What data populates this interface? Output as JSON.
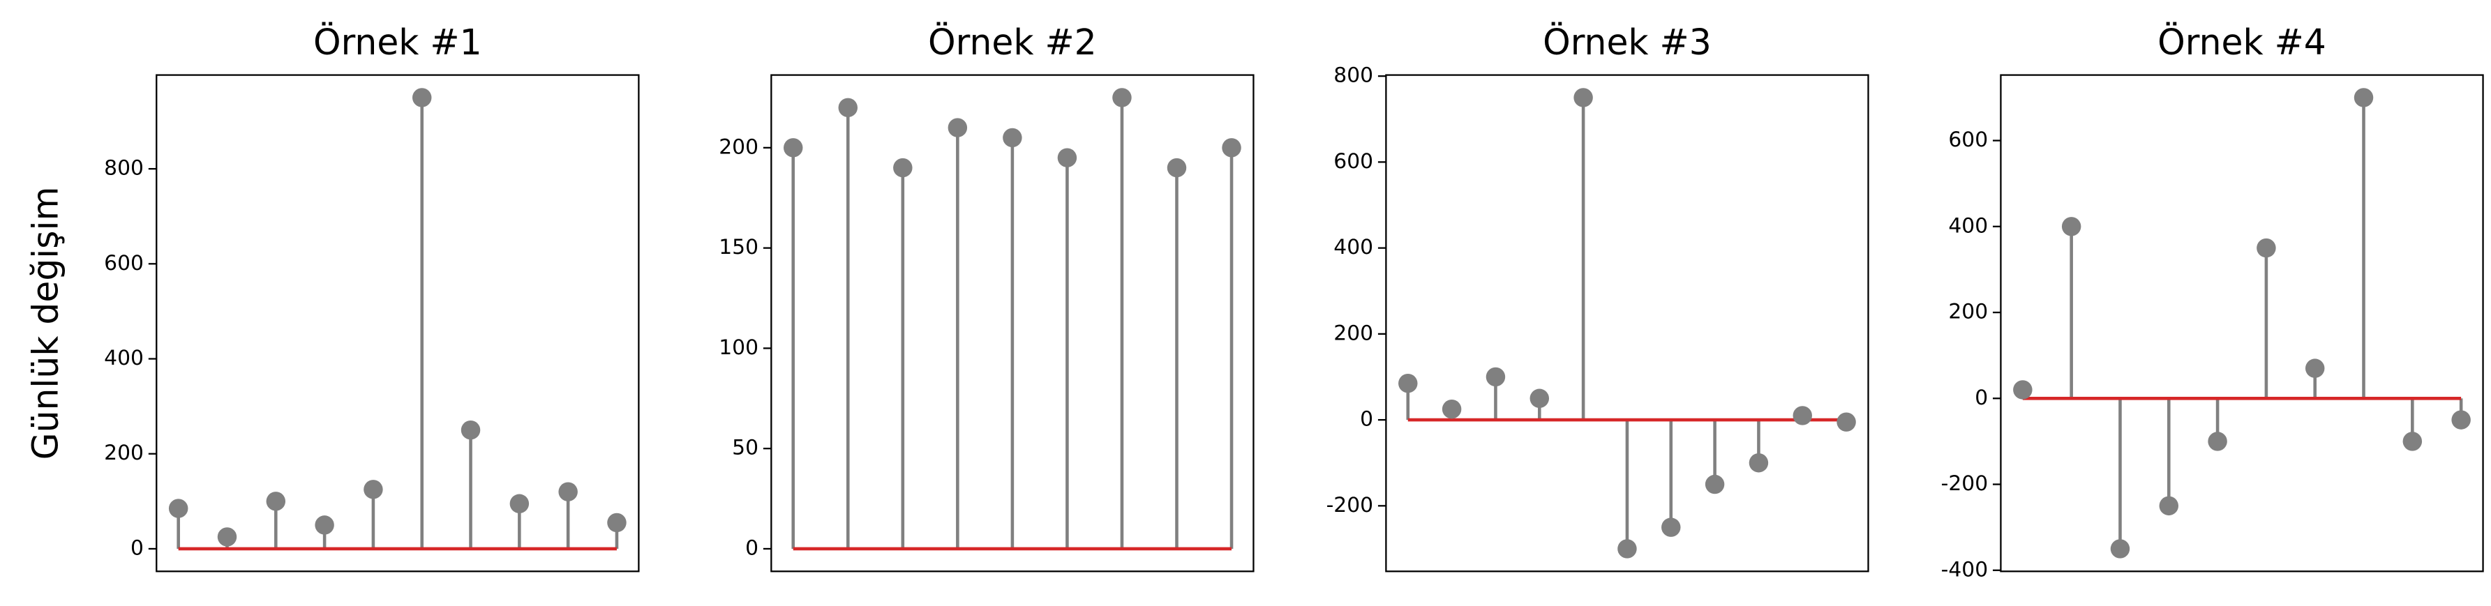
{
  "chart_data": [
    {
      "type": "stem",
      "title": "Örnek #1",
      "ylabel": "Günlük değişim",
      "color": "#808080",
      "baseline_color": "#d62728",
      "values": [
        85,
        25,
        100,
        50,
        125,
        950,
        250,
        95,
        120,
        55
      ],
      "ylim": [
        -47.5,
        997.5
      ],
      "yticks": [
        0,
        200,
        400,
        600,
        800
      ]
    },
    {
      "type": "stem",
      "title": "Örnek #2",
      "color": "#808080",
      "baseline_color": "#d62728",
      "values": [
        200,
        220,
        190,
        210,
        205,
        195,
        225,
        190,
        200
      ],
      "ylim": [
        -11.25,
        236.25
      ],
      "yticks": [
        0,
        50,
        100,
        150,
        200
      ]
    },
    {
      "type": "stem",
      "title": "Örnek #3",
      "color": "#808080",
      "baseline_color": "#d62728",
      "values": [
        85,
        25,
        100,
        50,
        750,
        -300,
        -250,
        -150,
        -100,
        10,
        -5
      ],
      "ylim": [
        -352.5,
        802.5
      ],
      "yticks": [
        -200,
        0,
        200,
        400,
        600,
        800
      ]
    },
    {
      "type": "stem",
      "title": "Örnek #4",
      "color": "#808080",
      "baseline_color": "#d62728",
      "values": [
        20,
        400,
        -350,
        -250,
        -100,
        350,
        70,
        700,
        -100,
        -50
      ],
      "ylim": [
        -402.5,
        752.5
      ],
      "yticks": [
        -400,
        -200,
        0,
        200,
        400,
        600
      ]
    }
  ]
}
